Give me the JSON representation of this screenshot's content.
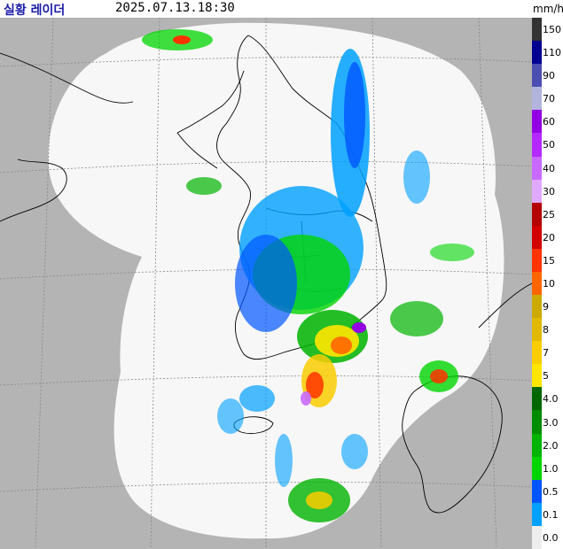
{
  "header": {
    "title": "실황 레이더",
    "timestamp": "2025.07.13.18:30",
    "unit": "mm/h"
  },
  "colors": {
    "background_outside": "#b4b4b4",
    "radar_coverage": "#f7f7f7",
    "coastline": "#000000",
    "grid": "#808080",
    "title_blue": "#1a1aa8"
  },
  "legend": [
    {
      "label": "150",
      "color": "#333333"
    },
    {
      "label": "110",
      "color": "#000390"
    },
    {
      "label": "90",
      "color": "#4c4eb1"
    },
    {
      "label": "70",
      "color": "#b3b4de"
    },
    {
      "label": "60",
      "color": "#9300e4"
    },
    {
      "label": "50",
      "color": "#b329ff"
    },
    {
      "label": "40",
      "color": "#c969ff"
    },
    {
      "label": "30",
      "color": "#e0a9ff"
    },
    {
      "label": "25",
      "color": "#b40000"
    },
    {
      "label": "20",
      "color": "#d20000"
    },
    {
      "label": "15",
      "color": "#ff3300"
    },
    {
      "label": "10",
      "color": "#ff6600"
    },
    {
      "label": "9",
      "color": "#ccaa00"
    },
    {
      "label": "8",
      "color": "#e0b900"
    },
    {
      "label": "7",
      "color": "#f9cd00"
    },
    {
      "label": "5",
      "color": "#ffe600"
    },
    {
      "label": "4.0",
      "color": "#006600"
    },
    {
      "label": "3.0",
      "color": "#008c00"
    },
    {
      "label": "2.0",
      "color": "#00b300"
    },
    {
      "label": "1.0",
      "color": "#00d500"
    },
    {
      "label": "0.5",
      "color": "#0055ff"
    },
    {
      "label": "0.1",
      "color": "#00a0ff"
    },
    {
      "label": "0.0",
      "color": "#eeeeee"
    }
  ]
}
